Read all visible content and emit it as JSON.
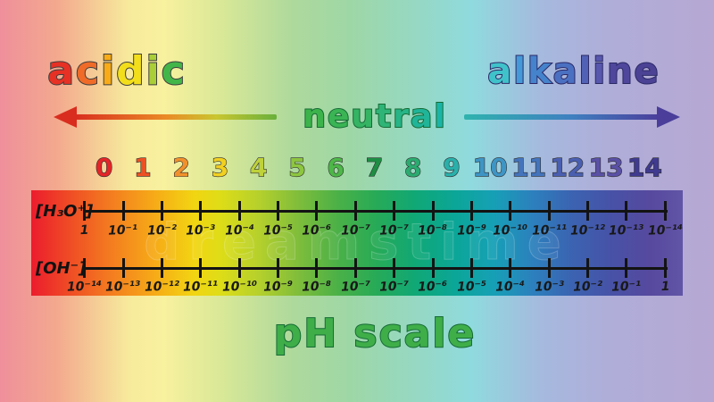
{
  "title": {
    "text": "pH scale",
    "color": "#3fae49",
    "outline": "#156b35"
  },
  "watermark": "dreamstime",
  "region_labels": {
    "acidic": {
      "outline": "#3f3f3f",
      "stroke_width": "2px",
      "letters": [
        {
          "ch": "a",
          "color": "#e73125"
        },
        {
          "ch": "c",
          "color": "#ef6b27"
        },
        {
          "ch": "i",
          "color": "#f8ab16"
        },
        {
          "ch": "d",
          "color": "#f2de1b"
        },
        {
          "ch": "i",
          "color": "#a9ce38"
        },
        {
          "ch": "c",
          "color": "#43b649"
        }
      ]
    },
    "alkaline": {
      "outline": "#2c2a66",
      "stroke_width": "2px",
      "letters": [
        {
          "ch": "a",
          "color": "#3fc2ca"
        },
        {
          "ch": "l",
          "color": "#4499d8"
        },
        {
          "ch": "k",
          "color": "#4583cc"
        },
        {
          "ch": "a",
          "color": "#4a70c2"
        },
        {
          "ch": "l",
          "color": "#5162b6"
        },
        {
          "ch": "i",
          "color": "#5757ae"
        },
        {
          "ch": "n",
          "color": "#4e479c"
        },
        {
          "ch": "e",
          "color": "#4b4295"
        }
      ]
    },
    "neutral": {
      "outline": "#156b35",
      "stroke_width": "2px",
      "letters": [
        {
          "ch": "n",
          "color": "#3db44b"
        },
        {
          "ch": "e",
          "color": "#3ab454"
        },
        {
          "ch": "u",
          "color": "#35b464"
        },
        {
          "ch": "t",
          "color": "#2eb476"
        },
        {
          "ch": "r",
          "color": "#27b487"
        },
        {
          "ch": "a",
          "color": "#20b499"
        },
        {
          "ch": "l",
          "color": "#1bb4a7"
        }
      ]
    }
  },
  "arrows": {
    "left": {
      "direction": "left",
      "head_color": "#d92d1f",
      "gradient": [
        "#d92d1f 0%",
        "#ea8a26 45%",
        "#c9c630 70%",
        "#68b03b 100%"
      ]
    },
    "right": {
      "direction": "right",
      "head_color": "#4a3e9a",
      "gradient": [
        "#2fb3ae 0%",
        "#3f80c0 55%",
        "#4b3f9b 100%"
      ]
    }
  },
  "ph_numbers": [
    {
      "value": "0",
      "color": "#e42528"
    },
    {
      "value": "1",
      "color": "#ec5123"
    },
    {
      "value": "2",
      "color": "#f1912c"
    },
    {
      "value": "3",
      "color": "#f2d020"
    },
    {
      "value": "4",
      "color": "#bfd23a"
    },
    {
      "value": "5",
      "color": "#8dc63f"
    },
    {
      "value": "6",
      "color": "#4db748"
    },
    {
      "value": "7",
      "color": "#1d8e44"
    },
    {
      "value": "8",
      "color": "#2bab70"
    },
    {
      "value": "9",
      "color": "#29b0ab"
    },
    {
      "value": "10",
      "color": "#3e95c5"
    },
    {
      "value": "11",
      "color": "#4374bc"
    },
    {
      "value": "12",
      "color": "#4a5fb0"
    },
    {
      "value": "13",
      "color": "#5a50a5"
    },
    {
      "value": "14",
      "color": "#403a90"
    }
  ],
  "number_outline": "#2f2f2f",
  "scales": {
    "h3o": {
      "label": "[H₃O⁺]",
      "values": [
        "1",
        "10⁻¹",
        "10⁻²",
        "10⁻³",
        "10⁻⁴",
        "10⁻⁵",
        "10⁻⁶",
        "10⁻⁷",
        "10⁻⁷",
        "10⁻⁸",
        "10⁻⁹",
        "10⁻¹⁰",
        "10⁻¹¹",
        "10⁻¹²",
        "10⁻¹³",
        "10⁻¹⁴"
      ]
    },
    "oh": {
      "label": "[OH⁻]",
      "values": [
        "10⁻¹⁴",
        "10⁻¹³",
        "10⁻¹²",
        "10⁻¹¹",
        "10⁻¹⁰",
        "10⁻⁹",
        "10⁻⁸",
        "10⁻⁷",
        "10⁻⁷",
        "10⁻⁶",
        "10⁻⁵",
        "10⁻⁴",
        "10⁻³",
        "10⁻²",
        "10⁻¹",
        "1"
      ]
    }
  },
  "colors": {
    "background_gradient": [
      "#ef8f9b 0%",
      "#f3a98e 8%",
      "#f7ea9c 18%",
      "#f8f19e 23%",
      "#d9e897 31%",
      "#aed99c 41%",
      "#9ed7a6 49%",
      "#96d8c2 58%",
      "#8fdade 66%",
      "#a6b9de 76%",
      "#afaed9 85%",
      "#b6a8d3 100%"
    ],
    "bar_gradient": [
      "#ec1c2d 0%",
      "#ef4d25 6%",
      "#f4821f 13%",
      "#f6ab17 19%",
      "#f2d512 25%",
      "#dedd17 29%",
      "#b5d02c 35%",
      "#7fbd3b 41%",
      "#4bb147 47%",
      "#27aa57 53%",
      "#10a876 59%",
      "#0ba697 65%",
      "#16a0b6 71%",
      "#2c80bd 77%",
      "#3b63b1 83%",
      "#4752a7 89%",
      "#56499e 95%",
      "#6155a7 100%"
    ]
  }
}
